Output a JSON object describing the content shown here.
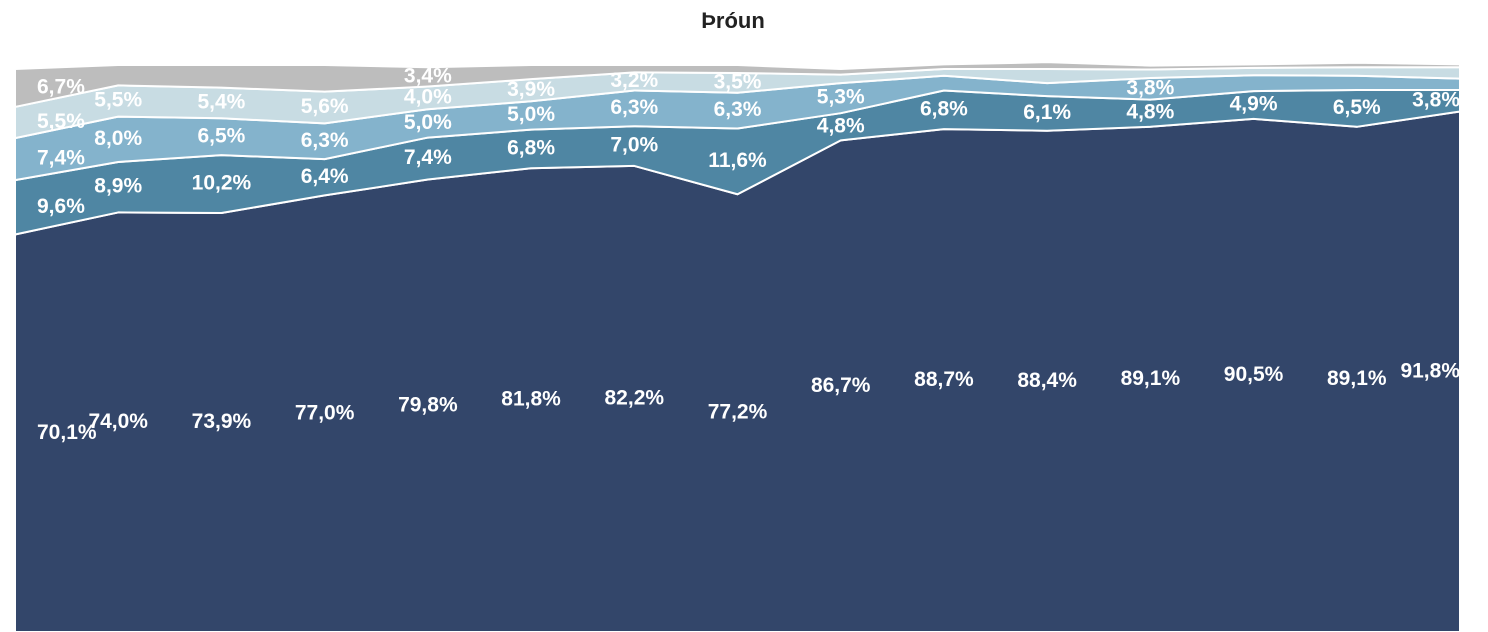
{
  "chart_data": {
    "type": "stacked_area",
    "title": "Þróun",
    "categories": [
      null,
      null,
      null,
      null,
      null,
      null,
      null,
      null,
      null,
      null,
      null,
      null,
      null,
      null,
      null
    ],
    "ylim": [
      0,
      100
    ],
    "series": [
      {
        "color": "#33466a",
        "values": [
          70.1,
          74.0,
          73.9,
          77.0,
          79.8,
          81.8,
          82.2,
          77.2,
          86.7,
          88.7,
          88.4,
          89.1,
          90.5,
          89.1,
          91.8
        ],
        "value_labels": [
          "70,1%",
          "74,0%",
          "73,9%",
          "77,0%",
          "79,8%",
          "81,8%",
          "82,2%",
          "77,2%",
          "86,7%",
          "88,7%",
          "88,4%",
          "89,1%",
          "90,5%",
          "89,1%",
          "91,8%"
        ]
      },
      {
        "color": "#4f86a3",
        "values": [
          9.6,
          8.9,
          10.2,
          6.4,
          7.4,
          6.8,
          7.0,
          11.6,
          4.8,
          6.8,
          6.1,
          4.8,
          4.9,
          6.5,
          3.8
        ],
        "value_labels": [
          "9,6%",
          "8,9%",
          "10,2%",
          "6,4%",
          "7,4%",
          "6,8%",
          "7,0%",
          "11,6%",
          "4,8%",
          "6,8%",
          "6,1%",
          "4,8%",
          "4,9%",
          "6,5%",
          "3,8%"
        ]
      },
      {
        "color": "#84b3cc",
        "values": [
          7.4,
          8.0,
          6.5,
          6.3,
          5.0,
          5.0,
          6.3,
          6.3,
          5.3,
          2.6,
          2.3,
          3.8,
          2.8,
          2.5,
          2.0
        ],
        "value_labels": [
          "7,4%",
          "8,0%",
          "6,5%",
          "6,3%",
          "5,0%",
          "5,0%",
          "6,3%",
          "6,3%",
          "5,3%",
          null,
          null,
          "3,8%",
          null,
          null,
          null
        ]
      },
      {
        "color": "#c8dce3",
        "values": [
          5.5,
          5.5,
          5.4,
          5.6,
          4.0,
          3.9,
          3.2,
          3.5,
          1.5,
          1.2,
          2.5,
          1.5,
          1.3,
          1.5,
          2.0
        ],
        "value_labels": [
          "5,5%",
          "5,5%",
          "5,4%",
          "5,6%",
          "4,0%",
          "3,9%",
          "3,2%",
          "3,5%",
          null,
          null,
          null,
          null,
          null,
          null,
          null
        ]
      },
      {
        "color": "#bdbdbd",
        "values": [
          6.7,
          3.6,
          4.0,
          4.7,
          3.4,
          2.5,
          1.3,
          1.4,
          1.0,
          0.8,
          1.2,
          0.7,
          0.6,
          0.8,
          0.5
        ],
        "value_labels": [
          "6,7%",
          null,
          null,
          null,
          "3,4%",
          null,
          null,
          null,
          null,
          null,
          null,
          null,
          null,
          null,
          null
        ]
      }
    ]
  }
}
